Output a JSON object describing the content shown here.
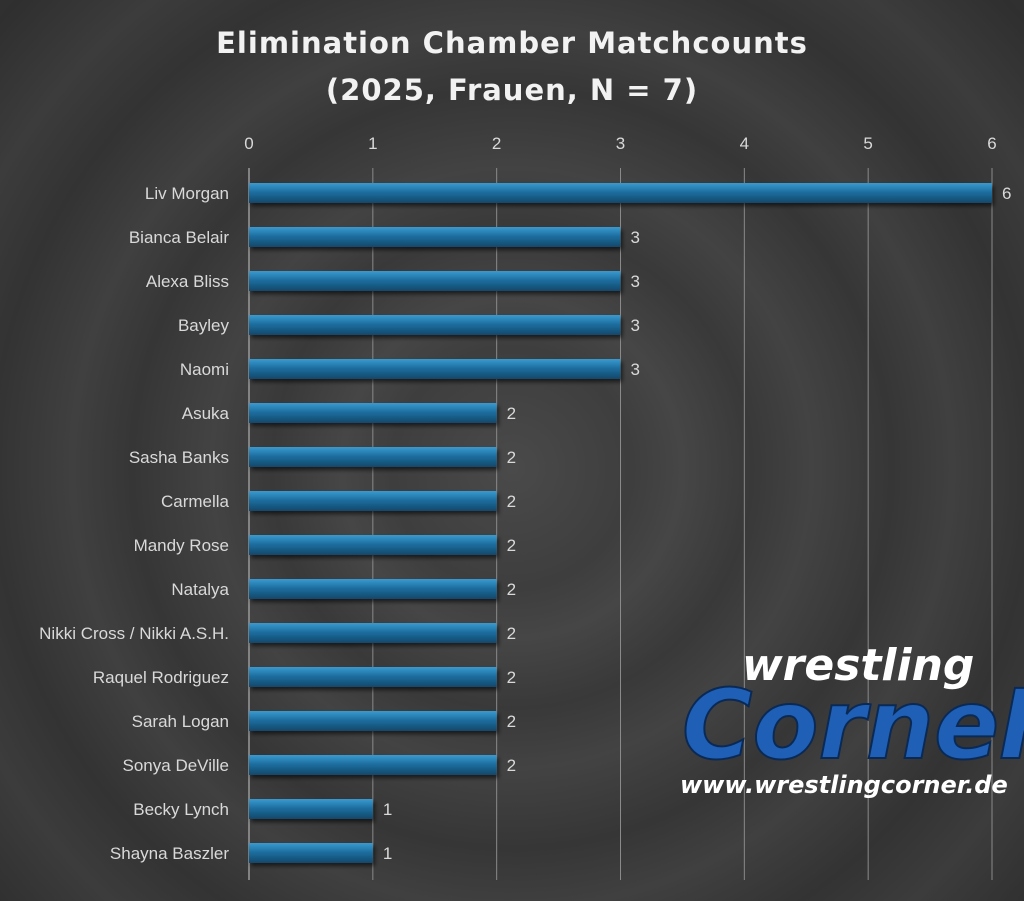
{
  "chart_data": {
    "type": "bar",
    "orientation": "horizontal",
    "title": "Elimination Chamber Matchcounts",
    "subtitle": "(2025, Frauen, N = 7)",
    "categories": [
      "Liv Morgan",
      "Bianca Belair",
      "Alexa Bliss",
      "Bayley",
      "Naomi",
      "Asuka",
      "Sasha Banks",
      "Carmella",
      "Mandy Rose",
      "Natalya",
      "Nikki Cross / Nikki A.S.H.",
      "Raquel Rodriguez",
      "Sarah Logan",
      "Sonya DeVille",
      "Becky Lynch",
      "Shayna Baszler"
    ],
    "values": [
      6,
      3,
      3,
      3,
      3,
      2,
      2,
      2,
      2,
      2,
      2,
      2,
      2,
      2,
      1,
      1
    ],
    "xlim": [
      0,
      6
    ],
    "xticks": [
      "0",
      "1",
      "2",
      "3",
      "4",
      "5",
      "6"
    ],
    "axis_position": "top",
    "grid": true,
    "data_labels": true,
    "colors": {
      "bar": "#1d6fa0",
      "bar_top": "#2f8fc6",
      "grid": "#8a8a8a",
      "text": "#d9d9d9"
    }
  },
  "logo": {
    "word1": "wrestling",
    "word2": "CorneR",
    "url": "www.wrestlingcorner.de"
  }
}
